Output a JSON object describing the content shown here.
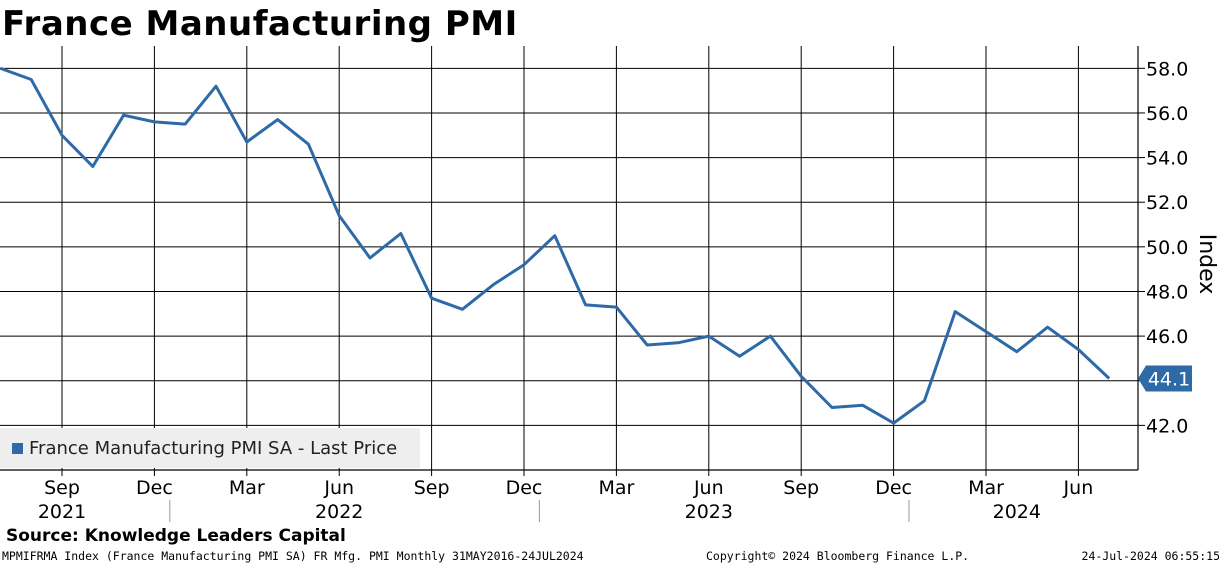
{
  "header": {
    "title": "France Manufacturing PMI"
  },
  "footer": {
    "source": "Source: Knowledge Leaders Capital",
    "ticker_info": "MPMIFRMA Index (France Manufacturing PMI SA) FR Mfg. PMI  Monthly 31MAY2016-24JUL2024",
    "copyright": "Copyright© 2024 Bloomberg Finance L.P.",
    "timestamp": "24-Jul-2024 06:55:15"
  },
  "colors": {
    "series": "#2e6aa7",
    "grid": "#000000",
    "legend_bg": "#eeeeee",
    "last_price_box": "#2e6aa7"
  },
  "chart_data": {
    "type": "line",
    "ylabel": "Index",
    "ylim": [
      40.0,
      59.0
    ],
    "y_ticks": [
      "42.0",
      "44.0",
      "46.0",
      "48.0",
      "50.0",
      "52.0",
      "54.0",
      "56.0",
      "58.0"
    ],
    "x_month_ticks": [
      {
        "label": "Sep",
        "date": "2021-09"
      },
      {
        "label": "Dec",
        "date": "2021-12"
      },
      {
        "label": "Mar",
        "date": "2022-03"
      },
      {
        "label": "Jun",
        "date": "2022-06"
      },
      {
        "label": "Sep",
        "date": "2022-09"
      },
      {
        "label": "Dec",
        "date": "2022-12"
      },
      {
        "label": "Mar",
        "date": "2023-03"
      },
      {
        "label": "Jun",
        "date": "2023-06"
      },
      {
        "label": "Sep",
        "date": "2023-09"
      },
      {
        "label": "Dec",
        "date": "2023-12"
      },
      {
        "label": "Mar",
        "date": "2024-03"
      },
      {
        "label": "Jun",
        "date": "2024-06"
      }
    ],
    "x_year_labels": [
      {
        "label": "2021",
        "date": "2021-09"
      },
      {
        "label": "2022",
        "date": "2022-06"
      },
      {
        "label": "2023",
        "date": "2023-06"
      },
      {
        "label": "2024",
        "date": "2024-04"
      }
    ],
    "series": [
      {
        "name": "France Manufacturing PMI SA - Last Price",
        "last_value": "44.1",
        "points": [
          {
            "date": "2021-07",
            "value": 58.0
          },
          {
            "date": "2021-08",
            "value": 57.5
          },
          {
            "date": "2021-09",
            "value": 55.0
          },
          {
            "date": "2021-10",
            "value": 53.6
          },
          {
            "date": "2021-11",
            "value": 55.9
          },
          {
            "date": "2021-12",
            "value": 55.6
          },
          {
            "date": "2022-01",
            "value": 55.5
          },
          {
            "date": "2022-02",
            "value": 57.2
          },
          {
            "date": "2022-03",
            "value": 54.7
          },
          {
            "date": "2022-04",
            "value": 55.7
          },
          {
            "date": "2022-05",
            "value": 54.6
          },
          {
            "date": "2022-06",
            "value": 51.4
          },
          {
            "date": "2022-07",
            "value": 49.5
          },
          {
            "date": "2022-08",
            "value": 50.6
          },
          {
            "date": "2022-09",
            "value": 47.7
          },
          {
            "date": "2022-10",
            "value": 47.2
          },
          {
            "date": "2022-11",
            "value": 48.3
          },
          {
            "date": "2022-12",
            "value": 49.2
          },
          {
            "date": "2023-01",
            "value": 50.5
          },
          {
            "date": "2023-02",
            "value": 47.4
          },
          {
            "date": "2023-03",
            "value": 47.3
          },
          {
            "date": "2023-04",
            "value": 45.6
          },
          {
            "date": "2023-05",
            "value": 45.7
          },
          {
            "date": "2023-06",
            "value": 46.0
          },
          {
            "date": "2023-07",
            "value": 45.1
          },
          {
            "date": "2023-08",
            "value": 46.0
          },
          {
            "date": "2023-09",
            "value": 44.2
          },
          {
            "date": "2023-10",
            "value": 42.8
          },
          {
            "date": "2023-11",
            "value": 42.9
          },
          {
            "date": "2023-12",
            "value": 42.1
          },
          {
            "date": "2024-01",
            "value": 43.1
          },
          {
            "date": "2024-02",
            "value": 47.1
          },
          {
            "date": "2024-03",
            "value": 46.2
          },
          {
            "date": "2024-04",
            "value": 45.3
          },
          {
            "date": "2024-05",
            "value": 46.4
          },
          {
            "date": "2024-06",
            "value": 45.4
          },
          {
            "date": "2024-07",
            "value": 44.1
          }
        ]
      }
    ],
    "grid": true,
    "legend_position": "bottom-left"
  }
}
